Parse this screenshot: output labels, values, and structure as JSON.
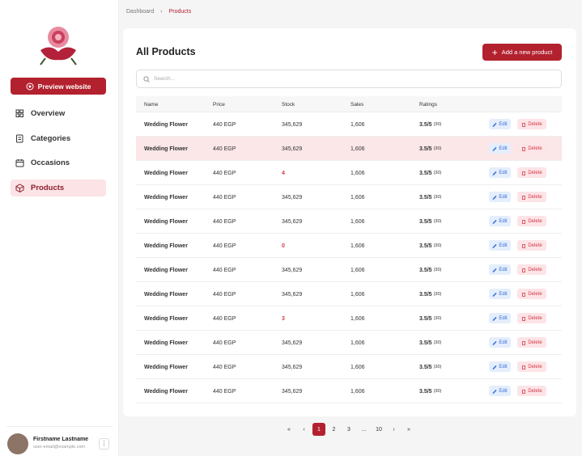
{
  "breadcrumb": {
    "items": [
      "Dashboard",
      "Products"
    ]
  },
  "sidebar": {
    "preview_button": "Preview website",
    "nav": [
      "Overview",
      "Categories",
      "Occasions",
      "Products"
    ],
    "user": {
      "name": "Firstname Lastname",
      "email": "user-email@example.com"
    }
  },
  "header": {
    "title": "All Products",
    "add_button": "Add a new product",
    "search_placeholder": "Search..."
  },
  "table": {
    "columns": [
      "Name",
      "Price",
      "Stock",
      "Sales",
      "Ratings"
    ],
    "actions": {
      "edit": "Edit",
      "delete": "Delete"
    },
    "rows": [
      [
        "Wedding Flower",
        "440 EGP",
        "345,629",
        "1,606",
        "3.5/5",
        "(30)"
      ],
      [
        "Wedding Flower",
        "440 EGP",
        "345,629",
        "1,606",
        "3.5/5",
        "(30)"
      ],
      [
        "Wedding Flower",
        "440 EGP",
        "4",
        "1,606",
        "3.5/5",
        "(30)"
      ],
      [
        "Wedding Flower",
        "440 EGP",
        "345,629",
        "1,606",
        "3.5/5",
        "(30)"
      ],
      [
        "Wedding Flower",
        "440 EGP",
        "345,629",
        "1,606",
        "3.5/5",
        "(30)"
      ],
      [
        "Wedding Flower",
        "440 EGP",
        "0",
        "1,606",
        "3.5/5",
        "(30)"
      ],
      [
        "Wedding Flower",
        "440 EGP",
        "345,629",
        "1,606",
        "3.5/5",
        "(30)"
      ],
      [
        "Wedding Flower",
        "440 EGP",
        "345,629",
        "1,606",
        "3.5/5",
        "(30)"
      ],
      [
        "Wedding Flower",
        "440 EGP",
        "3",
        "1,606",
        "3.5/5",
        "(30)"
      ],
      [
        "Wedding Flower",
        "440 EGP",
        "345,629",
        "1,606",
        "3.5/5",
        "(30)"
      ],
      [
        "Wedding Flower",
        "440 EGP",
        "345,629",
        "1,606",
        "3.5/5",
        "(30)"
      ],
      [
        "Wedding Flower",
        "440 EGP",
        "345,629",
        "1,606",
        "3.5/5",
        "(30)"
      ]
    ]
  },
  "pagination": [
    "«",
    "‹",
    "1",
    "2",
    "3",
    "...",
    "10",
    "›",
    "»"
  ]
}
